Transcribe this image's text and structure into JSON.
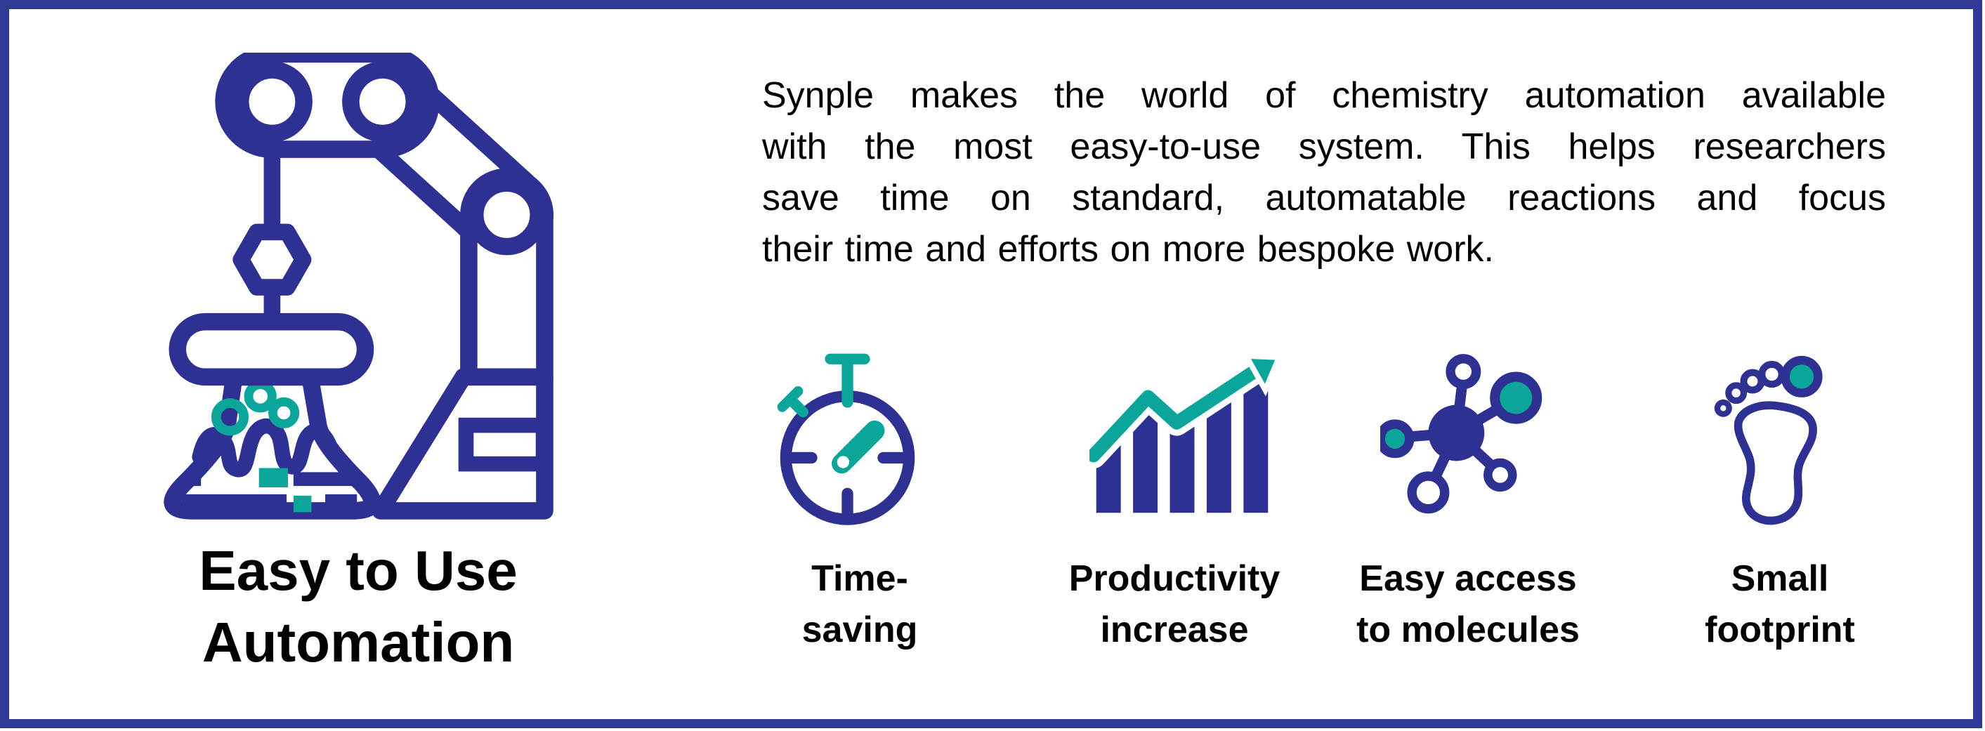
{
  "brand": {
    "navy": "#2E3192",
    "teal": "#0CA59A",
    "border": "#2E3A93",
    "text": "#000000"
  },
  "left_panel": {
    "icon": "robot-arm-chemistry-flask",
    "title": "Easy to Use\nAutomation"
  },
  "intro": {
    "lines": [
      "Synple makes the world of chemistry automation available",
      "with the most easy-to-use system. This helps researchers",
      "save time on standard, automatable reactions and focus",
      "their time and efforts on more bespoke work."
    ]
  },
  "features": [
    {
      "icon": "stopwatch-icon",
      "label": "Time-\nsaving"
    },
    {
      "icon": "bar-chart-growth-icon",
      "label": "Productivity\nincrease"
    },
    {
      "icon": "molecule-icon",
      "label": "Easy access\nto molecules"
    },
    {
      "icon": "footprint-icon",
      "label": "Small\nfootprint"
    }
  ]
}
